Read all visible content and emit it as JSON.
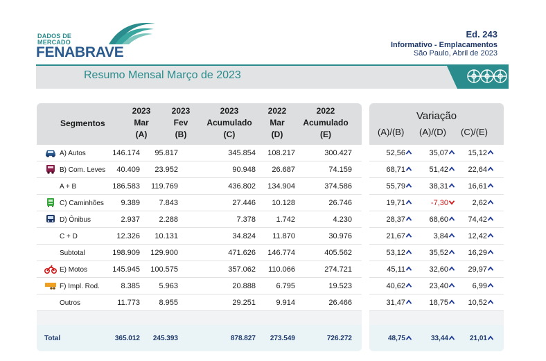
{
  "header": {
    "logo_small_line1": "DADOS DE",
    "logo_small_line2": "MERCADO",
    "logo_brand": "FENABRAVE",
    "edition": "Ed. 243",
    "subtitle": "Informativo - Emplacamentos",
    "place_date": "São Paulo, Abril de 2023"
  },
  "banner": {
    "title": "Resumo Mensal Março de 2023"
  },
  "table": {
    "segment_header": "Segmentos",
    "columns": [
      {
        "l1": "2023",
        "l2": "Mar",
        "l3": "(A)"
      },
      {
        "l1": "2023",
        "l2": "Fev",
        "l3": "(B)"
      },
      {
        "l1": "2023",
        "l2": "Acumulado",
        "l3": "(C)"
      },
      {
        "l1": "2022",
        "l2": "Mar",
        "l3": "(D)"
      },
      {
        "l1": "2022",
        "l2": "Acumulado",
        "l3": "(E)"
      }
    ],
    "variation_title": "Variação",
    "variation_cols": [
      "(A)/(B)",
      "(A)/(D)",
      "(C)/(E)"
    ],
    "rows": [
      {
        "label": "A) Autos",
        "icon": "car-icon",
        "a": "146.174",
        "b": "95.817",
        "c": "345.854",
        "d": "108.217",
        "e": "300.427",
        "v1": "52,56",
        "v2": "35,07",
        "v3": "15,12",
        "dir": [
          "up",
          "up",
          "up"
        ]
      },
      {
        "label": "B) Com. Leves",
        "icon": "van-icon",
        "a": "40.409",
        "b": "23.952",
        "c": "90.948",
        "d": "26.687",
        "e": "74.159",
        "v1": "68,71",
        "v2": "51,42",
        "v3": "22,64",
        "dir": [
          "up",
          "up",
          "up"
        ]
      },
      {
        "label": "A + B",
        "icon": "",
        "a": "186.583",
        "b": "119.769",
        "c": "436.802",
        "d": "134.904",
        "e": "374.586",
        "v1": "55,79",
        "v2": "38,31",
        "v3": "16,61",
        "dir": [
          "up",
          "up",
          "up"
        ]
      },
      {
        "label": "C) Caminhões",
        "icon": "truck-icon",
        "a": "9.389",
        "b": "7.843",
        "c": "27.446",
        "d": "10.128",
        "e": "26.746",
        "v1": "19,71",
        "v2": "-7,30",
        "v3": "2,62",
        "dir": [
          "up",
          "down",
          "up"
        ]
      },
      {
        "label": "D) Ônibus",
        "icon": "bus-icon",
        "a": "2.937",
        "b": "2.288",
        "c": "7.378",
        "d": "1.742",
        "e": "4.230",
        "v1": "28,37",
        "v2": "68,60",
        "v3": "74,42",
        "dir": [
          "up",
          "up",
          "up"
        ]
      },
      {
        "label": "C + D",
        "icon": "",
        "a": "12.326",
        "b": "10.131",
        "c": "34.824",
        "d": "11.870",
        "e": "30.976",
        "v1": "21,67",
        "v2": "3,84",
        "v3": "12,42",
        "dir": [
          "up",
          "up",
          "up"
        ]
      },
      {
        "label": "Subtotal",
        "icon": "",
        "a": "198.909",
        "b": "129.900",
        "c": "471.626",
        "d": "146.774",
        "e": "405.562",
        "v1": "53,12",
        "v2": "35,52",
        "v3": "16,29",
        "dir": [
          "up",
          "up",
          "up"
        ]
      },
      {
        "label": "E) Motos",
        "icon": "motorcycle-icon",
        "a": "145.945",
        "b": "100.575",
        "c": "357.062",
        "d": "110.066",
        "e": "274.721",
        "v1": "45,11",
        "v2": "32,60",
        "v3": "29,97",
        "dir": [
          "up",
          "up",
          "up"
        ]
      },
      {
        "label": "F) Impl. Rod.",
        "icon": "trailer-icon",
        "a": "8.385",
        "b": "5.963",
        "c": "20.888",
        "d": "6.795",
        "e": "19.523",
        "v1": "40,62",
        "v2": "23,40",
        "v3": "6,99",
        "dir": [
          "up",
          "up",
          "up"
        ]
      },
      {
        "label": "Outros",
        "icon": "",
        "a": "11.773",
        "b": "8.955",
        "c": "29.251",
        "d": "9.914",
        "e": "26.466",
        "v1": "31,47",
        "v2": "18,75",
        "v3": "10,52",
        "dir": [
          "up",
          "up",
          "up"
        ]
      }
    ],
    "total": {
      "label": "Total",
      "a": "365.012",
      "b": "245.393",
      "c": "878.827",
      "d": "273.549",
      "e": "726.272",
      "v1": "48,75",
      "v2": "33,44",
      "v3": "21,01",
      "dir": [
        "up",
        "up",
        "up"
      ]
    }
  },
  "colors": {
    "brand_teal": "#2a8c8c",
    "brand_blue": "#2b5b8e",
    "up_arrow": "#1f3a9a",
    "down_arrow": "#d01a1a"
  }
}
